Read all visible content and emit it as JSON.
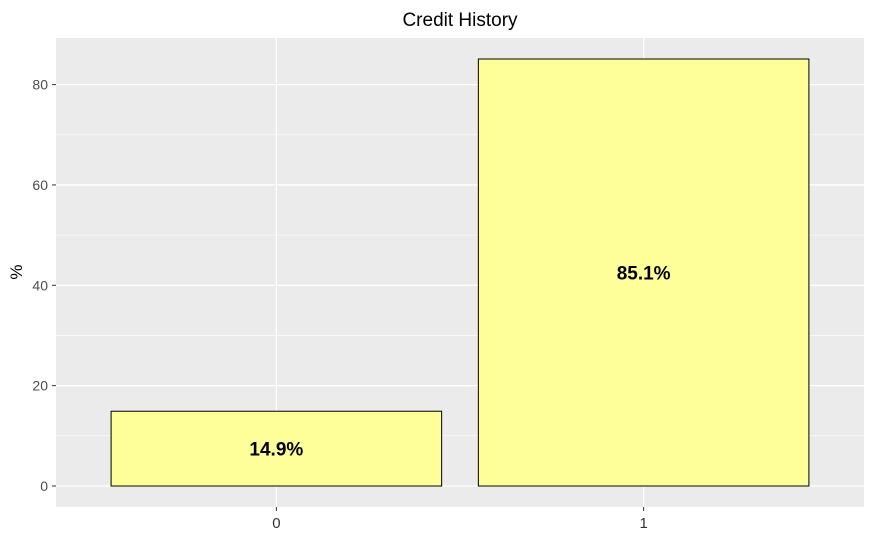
{
  "chart_data": {
    "type": "bar",
    "title": "Credit History",
    "xlabel": "",
    "ylabel": "%",
    "categories": [
      "0",
      "1"
    ],
    "values": [
      14.9,
      85.1
    ],
    "data_labels": [
      "14.9%",
      "85.1%"
    ],
    "yticks": [
      "0",
      "20",
      "40",
      "60",
      "80"
    ],
    "ylim": [
      0,
      89.4
    ],
    "grid": true,
    "legend": "none",
    "colors": {
      "bar_fill": "#ffff99",
      "bar_stroke": "#000000",
      "panel": "#ebebeb",
      "grid": "#ffffff"
    }
  }
}
